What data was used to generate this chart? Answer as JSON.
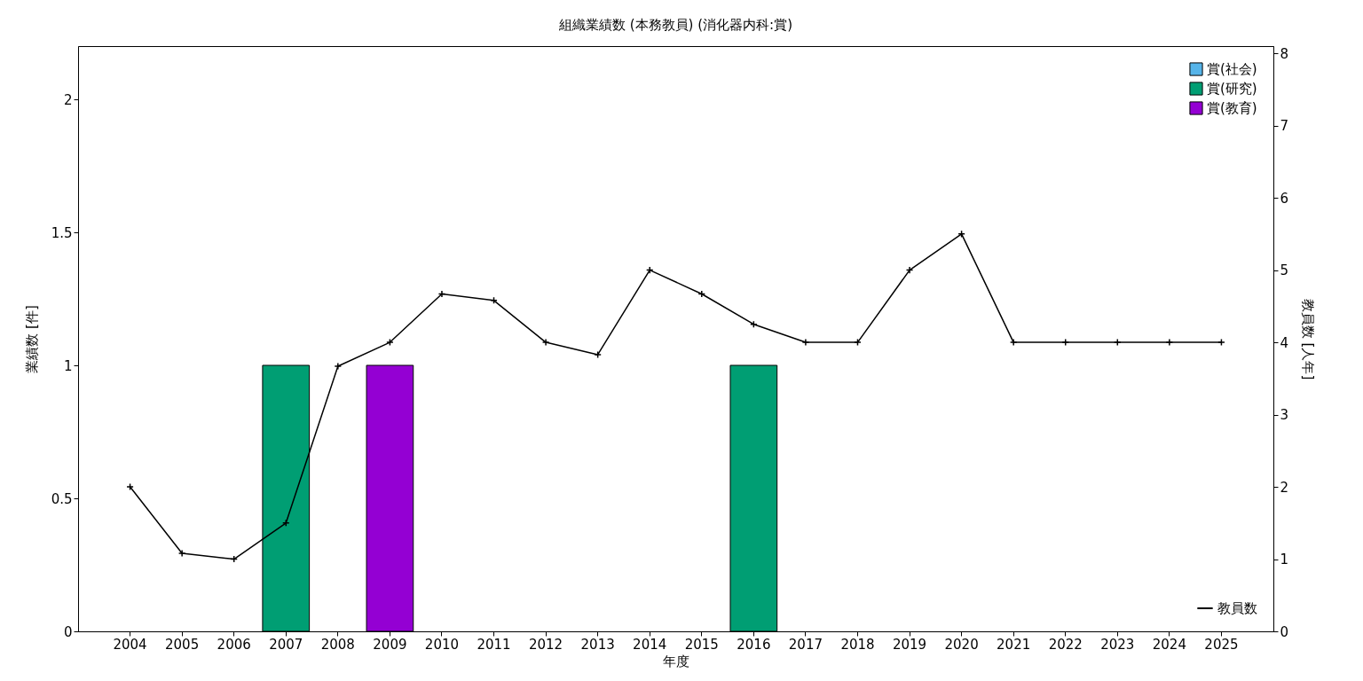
{
  "chart_data": {
    "type": "bar",
    "title": "組織業績数 (本務教員) (消化器内科:賞)",
    "xlabel": "年度",
    "ylabel": "業績数 [件]",
    "y2label": "教員数 [人年]",
    "categories": [
      "2004",
      "2005",
      "2006",
      "2007",
      "2008",
      "2009",
      "2010",
      "2011",
      "2012",
      "2013",
      "2014",
      "2015",
      "2016",
      "2017",
      "2018",
      "2019",
      "2020",
      "2021",
      "2022",
      "2023",
      "2024",
      "2025"
    ],
    "series": [
      {
        "name": "賞(社会)",
        "color": "#56b4e9",
        "values": [
          null,
          null,
          null,
          null,
          null,
          null,
          null,
          null,
          null,
          null,
          null,
          null,
          null,
          null,
          null,
          null,
          null,
          null,
          null,
          null,
          null,
          null
        ]
      },
      {
        "name": "賞(研究)",
        "color": "#009e73",
        "values": [
          null,
          null,
          null,
          1,
          null,
          null,
          null,
          null,
          null,
          null,
          null,
          null,
          1,
          null,
          null,
          null,
          null,
          null,
          null,
          null,
          null,
          null
        ]
      },
      {
        "name": "賞(教育)",
        "color": "#9400d3",
        "values": [
          null,
          null,
          null,
          null,
          null,
          1,
          null,
          null,
          null,
          null,
          null,
          null,
          null,
          null,
          null,
          null,
          null,
          null,
          null,
          null,
          null,
          null
        ]
      },
      {
        "name": "教員数",
        "type": "line",
        "axis": "y2",
        "color": "#000000",
        "values": [
          2,
          1.08,
          1,
          1.5,
          3.67,
          4,
          4.67,
          4.58,
          4,
          3.83,
          5,
          4.67,
          4.25,
          4,
          4,
          5,
          5.5,
          4,
          4,
          4,
          4,
          4
        ]
      }
    ],
    "ylim": [
      0,
      2.2
    ],
    "yticks": [
      0,
      0.5,
      1,
      1.5,
      2
    ],
    "y2lim": [
      0,
      8.1
    ],
    "y2ticks": [
      0,
      1,
      2,
      3,
      4,
      5,
      6,
      7,
      8
    ],
    "grid": false,
    "legend": "top right",
    "marker": "cross",
    "line_style": "solid"
  }
}
